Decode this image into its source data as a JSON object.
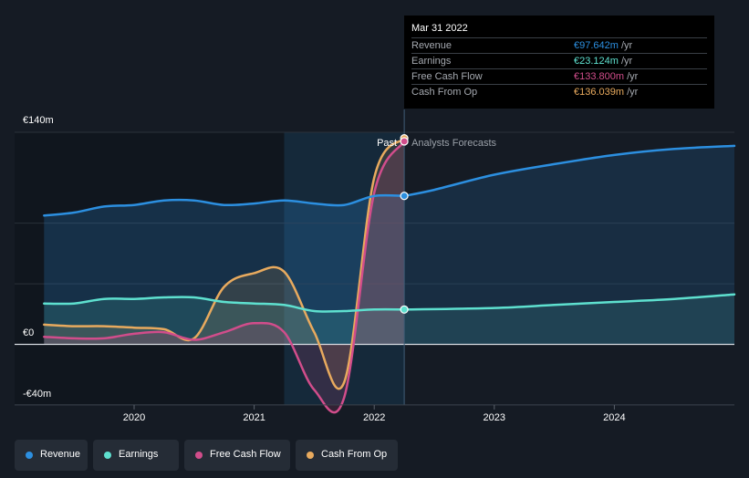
{
  "colors": {
    "revenue": "#2c8fe0",
    "earnings": "#5ee0cf",
    "fcf": "#d14d8b",
    "cfo": "#e8aa5e"
  },
  "chart_data": {
    "type": "line",
    "currency": "EUR",
    "unit": "million",
    "ylim": [
      -40,
      140
    ],
    "y_tick_labels": [
      "€140m",
      "€0",
      "-€40m"
    ],
    "x_tick_labels": [
      "2020",
      "2021",
      "2022",
      "2023",
      "2024"
    ],
    "x_range": [
      2019.2,
      2025.0
    ],
    "divider_labels": {
      "past": "Past",
      "forecast": "Analysts Forecasts"
    },
    "past_end_x": 2022.25,
    "highlight_start_x": 2021.25,
    "series": [
      {
        "name": "Revenue",
        "key": "revenue",
        "points": [
          [
            2019.25,
            85
          ],
          [
            2019.5,
            87
          ],
          [
            2019.75,
            91
          ],
          [
            2020.0,
            92
          ],
          [
            2020.25,
            95
          ],
          [
            2020.5,
            95
          ],
          [
            2020.75,
            92
          ],
          [
            2021.0,
            93
          ],
          [
            2021.25,
            95
          ],
          [
            2021.5,
            93
          ],
          [
            2021.75,
            92
          ],
          [
            2022.0,
            98
          ],
          [
            2022.25,
            98
          ]
        ],
        "forecast": [
          [
            2022.25,
            98
          ],
          [
            2022.5,
            102
          ],
          [
            2023.0,
            112
          ],
          [
            2023.5,
            119
          ],
          [
            2024.0,
            125
          ],
          [
            2024.5,
            129
          ],
          [
            2025.0,
            131
          ]
        ]
      },
      {
        "name": "Earnings",
        "key": "earnings",
        "points": [
          [
            2019.25,
            27
          ],
          [
            2019.5,
            27
          ],
          [
            2019.75,
            30
          ],
          [
            2020.0,
            30
          ],
          [
            2020.25,
            31
          ],
          [
            2020.5,
            31
          ],
          [
            2020.75,
            28
          ],
          [
            2021.0,
            27
          ],
          [
            2021.25,
            26
          ],
          [
            2021.5,
            22
          ],
          [
            2021.75,
            22
          ],
          [
            2022.0,
            23
          ],
          [
            2022.25,
            23
          ]
        ],
        "forecast": [
          [
            2022.25,
            23
          ],
          [
            2023.0,
            24
          ],
          [
            2023.5,
            26
          ],
          [
            2024.0,
            28
          ],
          [
            2024.5,
            30
          ],
          [
            2025.0,
            33
          ]
        ]
      },
      {
        "name": "Free Cash Flow",
        "key": "fcf",
        "points": [
          [
            2019.25,
            5
          ],
          [
            2019.5,
            4
          ],
          [
            2019.75,
            4
          ],
          [
            2020.0,
            7
          ],
          [
            2020.25,
            8
          ],
          [
            2020.5,
            3
          ],
          [
            2020.75,
            8
          ],
          [
            2021.0,
            14
          ],
          [
            2021.25,
            8
          ],
          [
            2021.5,
            -30
          ],
          [
            2021.75,
            -35
          ],
          [
            2022.0,
            100
          ],
          [
            2022.25,
            134
          ]
        ]
      },
      {
        "name": "Cash From Op",
        "key": "cfo",
        "points": [
          [
            2019.25,
            13
          ],
          [
            2019.5,
            12
          ],
          [
            2019.75,
            12
          ],
          [
            2020.0,
            11
          ],
          [
            2020.25,
            10
          ],
          [
            2020.5,
            4
          ],
          [
            2020.75,
            38
          ],
          [
            2021.0,
            47
          ],
          [
            2021.25,
            48
          ],
          [
            2021.5,
            8
          ],
          [
            2021.75,
            -25
          ],
          [
            2022.0,
            110
          ],
          [
            2022.25,
            136
          ]
        ]
      }
    ]
  },
  "tooltip": {
    "date": "Mar 31 2022",
    "rows": [
      {
        "name": "Revenue",
        "value": "€97.642m",
        "unit": " /yr",
        "key": "revenue"
      },
      {
        "name": "Earnings",
        "value": "€23.124m",
        "unit": " /yr",
        "key": "earnings"
      },
      {
        "name": "Free Cash Flow",
        "value": "€133.800m",
        "unit": " /yr",
        "key": "fcf"
      },
      {
        "name": "Cash From Op",
        "value": "€136.039m",
        "unit": " /yr",
        "key": "cfo"
      }
    ]
  },
  "legend": [
    {
      "label": "Revenue",
      "key": "revenue"
    },
    {
      "label": "Earnings",
      "key": "earnings"
    },
    {
      "label": "Free Cash Flow",
      "key": "fcf"
    },
    {
      "label": "Cash From Op",
      "key": "cfo"
    }
  ]
}
